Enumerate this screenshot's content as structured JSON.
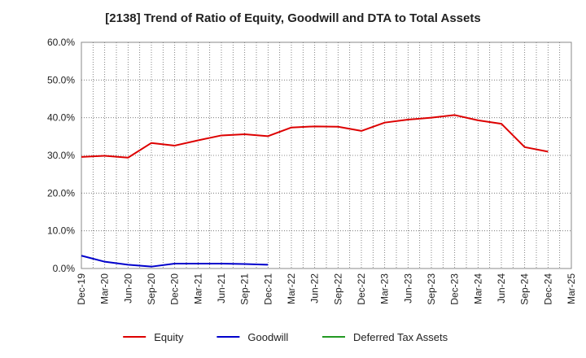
{
  "chart_data": {
    "type": "line",
    "title": "[2138]  Trend of Ratio of Equity, Goodwill and DTA to Total Assets",
    "xlabel": "",
    "ylabel": "",
    "ylim": [
      0,
      60
    ],
    "y_ticks": [
      "0.0%",
      "10.0%",
      "20.0%",
      "30.0%",
      "40.0%",
      "50.0%",
      "60.0%"
    ],
    "categories": [
      "Dec-19",
      "Mar-20",
      "Jun-20",
      "Sep-20",
      "Dec-20",
      "Mar-21",
      "Jun-21",
      "Sep-21",
      "Dec-21",
      "Mar-22",
      "Jun-22",
      "Sep-22",
      "Dec-22",
      "Mar-23",
      "Jun-23",
      "Sep-23",
      "Dec-23",
      "Mar-24",
      "Jun-24",
      "Sep-24",
      "Dec-24",
      "Mar-25"
    ],
    "grid": true,
    "legend_position": "bottom",
    "series": [
      {
        "name": "Equity",
        "color": "#dd0000",
        "values": [
          29.6,
          29.9,
          29.4,
          33.3,
          32.6,
          34.0,
          35.3,
          35.6,
          35.1,
          37.4,
          37.7,
          37.6,
          36.5,
          38.7,
          39.5,
          40.0,
          40.7,
          39.3,
          38.4,
          32.2,
          31.0,
          null
        ]
      },
      {
        "name": "Goodwill",
        "color": "#0000cc",
        "values": [
          3.4,
          1.8,
          1.0,
          0.5,
          1.3,
          1.3,
          1.3,
          1.2,
          1.0,
          null,
          null,
          null,
          null,
          null,
          null,
          null,
          null,
          null,
          null,
          null,
          null,
          null
        ]
      },
      {
        "name": "Deferred Tax Assets",
        "color": "#229922",
        "values": [
          null,
          null,
          null,
          null,
          null,
          null,
          null,
          null,
          null,
          null,
          null,
          null,
          null,
          null,
          null,
          null,
          null,
          null,
          null,
          null,
          null,
          null
        ]
      }
    ]
  }
}
